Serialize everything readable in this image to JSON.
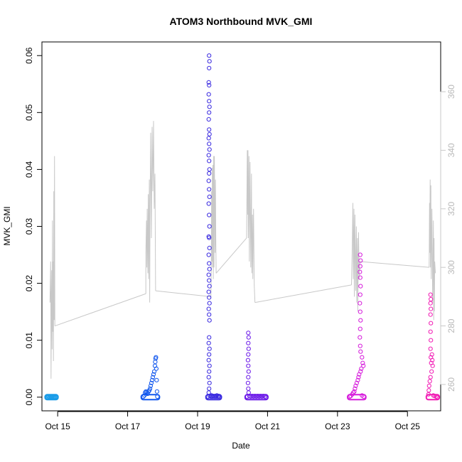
{
  "chart_data": {
    "type": "scatter",
    "title": "ATOM3 Northbound MVK_GMI",
    "xlabel": "Date",
    "ylabel": "MVK_GMI",
    "x_range_days": [
      14.55,
      25.95
    ],
    "ylim": [
      -0.0024,
      0.0624
    ],
    "x_ticks": [
      {
        "label": "Oct 15",
        "day": 15
      },
      {
        "label": "Oct 17",
        "day": 17
      },
      {
        "label": "Oct 19",
        "day": 19
      },
      {
        "label": "Oct 21",
        "day": 21
      },
      {
        "label": "Oct 23",
        "day": 23
      },
      {
        "label": "Oct 25",
        "day": 25
      }
    ],
    "y_ticks": [
      {
        "label": "0.00",
        "value": 0.0
      },
      {
        "label": "0.01",
        "value": 0.01
      },
      {
        "label": "0.02",
        "value": 0.02
      },
      {
        "label": "0.03",
        "value": 0.03
      },
      {
        "label": "0.04",
        "value": 0.04
      },
      {
        "label": "0.05",
        "value": 0.05
      },
      {
        "label": "0.06",
        "value": 0.06
      }
    ],
    "y2_range": [
      251,
      377
    ],
    "y2_ticks": [
      {
        "label": "260",
        "value": 260
      },
      {
        "label": "280",
        "value": 280
      },
      {
        "label": "300",
        "value": 300
      },
      {
        "label": "320",
        "value": 320
      },
      {
        "label": "340",
        "value": 340
      },
      {
        "label": "360",
        "value": 360
      }
    ],
    "y2_color": "#c8c8c8",
    "series": [
      {
        "color": "#1a9ce8",
        "x_range": [
          14.7,
          14.95
        ],
        "points": [
          [
            14.7,
            0.0
          ],
          [
            14.72,
            0.0
          ],
          [
            14.74,
            0.0001
          ],
          [
            14.76,
            0.0
          ],
          [
            14.78,
            0.0
          ],
          [
            14.8,
            0.0001
          ],
          [
            14.82,
            0.0
          ],
          [
            14.84,
            0.0
          ],
          [
            14.86,
            0.0001
          ],
          [
            14.88,
            0.0
          ],
          [
            14.9,
            0.0
          ],
          [
            14.92,
            0.0
          ],
          [
            14.94,
            0.0
          ]
        ]
      },
      {
        "color": "#1258ee",
        "x_range": [
          17.45,
          17.85
        ],
        "points": [
          [
            17.45,
            0.0001
          ],
          [
            17.48,
            0.0003
          ],
          [
            17.5,
            0.0008
          ],
          [
            17.52,
            0.001
          ],
          [
            17.55,
            0.0009
          ],
          [
            17.57,
            0.0006
          ],
          [
            17.6,
            0.001
          ],
          [
            17.62,
            0.0012
          ],
          [
            17.64,
            0.0015
          ],
          [
            17.66,
            0.002
          ],
          [
            17.68,
            0.0025
          ],
          [
            17.7,
            0.003
          ],
          [
            17.72,
            0.0035
          ],
          [
            17.74,
            0.004
          ],
          [
            17.76,
            0.0045
          ],
          [
            17.78,
            0.0055
          ],
          [
            17.79,
            0.0062
          ],
          [
            17.8,
            0.0068
          ],
          [
            17.81,
            0.007
          ],
          [
            17.82,
            0.005
          ],
          [
            17.83,
            0.003
          ],
          [
            17.84,
            0.001
          ],
          [
            17.85,
            0.0001
          ]
        ]
      },
      {
        "color": "#3a2ae0",
        "x_range": [
          19.3,
          19.62
        ],
        "points": [
          [
            19.33,
            0.06
          ],
          [
            19.34,
            0.059
          ],
          [
            19.33,
            0.0578
          ],
          [
            19.32,
            0.0553
          ],
          [
            19.33,
            0.0548
          ],
          [
            19.32,
            0.0532
          ],
          [
            19.33,
            0.052
          ],
          [
            19.34,
            0.051
          ],
          [
            19.33,
            0.05
          ],
          [
            19.32,
            0.0488
          ],
          [
            19.33,
            0.047
          ],
          [
            19.34,
            0.0462
          ],
          [
            19.32,
            0.0455
          ],
          [
            19.33,
            0.0445
          ],
          [
            19.34,
            0.0435
          ],
          [
            19.32,
            0.0425
          ],
          [
            19.33,
            0.0415
          ],
          [
            19.34,
            0.04
          ],
          [
            19.33,
            0.0393
          ],
          [
            19.32,
            0.038
          ],
          [
            19.33,
            0.0365
          ],
          [
            19.34,
            0.0352
          ],
          [
            19.32,
            0.034
          ],
          [
            19.33,
            0.032
          ],
          [
            19.34,
            0.03
          ],
          [
            19.32,
            0.0282
          ],
          [
            19.33,
            0.028
          ],
          [
            19.34,
            0.0262
          ],
          [
            19.32,
            0.025
          ],
          [
            19.33,
            0.0235
          ],
          [
            19.34,
            0.0225
          ],
          [
            19.32,
            0.0215
          ],
          [
            19.33,
            0.0205
          ],
          [
            19.34,
            0.0195
          ],
          [
            19.32,
            0.0185
          ],
          [
            19.33,
            0.0175
          ],
          [
            19.34,
            0.0165
          ],
          [
            19.32,
            0.0155
          ],
          [
            19.33,
            0.0145
          ],
          [
            19.34,
            0.0135
          ],
          [
            19.33,
            0.0105
          ],
          [
            19.32,
            0.0095
          ],
          [
            19.34,
            0.0085
          ],
          [
            19.33,
            0.0075
          ],
          [
            19.32,
            0.0065
          ],
          [
            19.34,
            0.0055
          ],
          [
            19.33,
            0.0045
          ],
          [
            19.32,
            0.0035
          ],
          [
            19.34,
            0.0025
          ],
          [
            19.33,
            0.0015
          ],
          [
            19.32,
            0.0008
          ],
          [
            19.3,
            0.0001
          ],
          [
            19.35,
            0.0002
          ],
          [
            19.38,
            0.0001
          ],
          [
            19.4,
            0.0003
          ],
          [
            19.42,
            0.0001
          ],
          [
            19.45,
            0.0002
          ],
          [
            19.48,
            0.0001
          ],
          [
            19.5,
            0.0002
          ],
          [
            19.53,
            0.0001
          ],
          [
            19.55,
            0.0003
          ],
          [
            19.58,
            0.0001
          ],
          [
            19.6,
            0.0002
          ],
          [
            19.62,
            0.0001
          ]
        ]
      },
      {
        "color": "#6c1ae8",
        "x_range": [
          20.42,
          20.95
        ],
        "points": [
          [
            20.45,
            0.0113
          ],
          [
            20.46,
            0.0105
          ],
          [
            20.45,
            0.0095
          ],
          [
            20.46,
            0.0085
          ],
          [
            20.45,
            0.0075
          ],
          [
            20.44,
            0.0065
          ],
          [
            20.45,
            0.0055
          ],
          [
            20.46,
            0.0045
          ],
          [
            20.45,
            0.0035
          ],
          [
            20.44,
            0.0025
          ],
          [
            20.45,
            0.0015
          ],
          [
            20.46,
            0.0008
          ],
          [
            20.42,
            0.0001
          ],
          [
            20.48,
            0.0002
          ],
          [
            20.52,
            0.0001
          ],
          [
            20.56,
            0.0002
          ],
          [
            20.6,
            0.0001
          ],
          [
            20.64,
            0.0002
          ],
          [
            20.68,
            0.0001
          ],
          [
            20.72,
            0.0002
          ],
          [
            20.76,
            0.0001
          ],
          [
            20.8,
            0.0002
          ],
          [
            20.84,
            0.0001
          ],
          [
            20.88,
            0.0002
          ],
          [
            20.92,
            0.0001
          ],
          [
            20.95,
            0.0
          ]
        ]
      },
      {
        "color": "#d61cdc",
        "x_range": [
          23.35,
          23.75
        ],
        "points": [
          [
            23.65,
            0.025
          ],
          [
            23.66,
            0.024
          ],
          [
            23.65,
            0.023
          ],
          [
            23.64,
            0.022
          ],
          [
            23.65,
            0.021
          ],
          [
            23.66,
            0.0195
          ],
          [
            23.65,
            0.018
          ],
          [
            23.64,
            0.0165
          ],
          [
            23.65,
            0.015
          ],
          [
            23.66,
            0.0135
          ],
          [
            23.65,
            0.012
          ],
          [
            23.64,
            0.0105
          ],
          [
            23.65,
            0.009
          ],
          [
            23.66,
            0.008
          ],
          [
            23.7,
            0.007
          ],
          [
            23.72,
            0.006
          ],
          [
            23.74,
            0.0055
          ],
          [
            23.68,
            0.005
          ],
          [
            23.66,
            0.0045
          ],
          [
            23.62,
            0.004
          ],
          [
            23.6,
            0.0035
          ],
          [
            23.58,
            0.003
          ],
          [
            23.55,
            0.0025
          ],
          [
            23.52,
            0.002
          ],
          [
            23.5,
            0.0015
          ],
          [
            23.48,
            0.001
          ],
          [
            23.45,
            0.0008
          ],
          [
            23.42,
            0.0005
          ],
          [
            23.38,
            0.0002
          ],
          [
            23.35,
            0.0001
          ],
          [
            23.7,
            0.0003
          ],
          [
            23.75,
            0.0001
          ]
        ]
      },
      {
        "color": "#f21ab4",
        "x_range": [
          25.6,
          25.85
        ],
        "points": [
          [
            25.66,
            0.018
          ],
          [
            25.67,
            0.0172
          ],
          [
            25.66,
            0.0165
          ],
          [
            25.67,
            0.0155
          ],
          [
            25.66,
            0.0145
          ],
          [
            25.67,
            0.013
          ],
          [
            25.66,
            0.0115
          ],
          [
            25.67,
            0.01
          ],
          [
            25.66,
            0.0085
          ],
          [
            25.67,
            0.007
          ],
          [
            25.68,
            0.006
          ],
          [
            25.7,
            0.0075
          ],
          [
            25.71,
            0.0065
          ],
          [
            25.72,
            0.0055
          ],
          [
            25.69,
            0.0045
          ],
          [
            25.66,
            0.0035
          ],
          [
            25.64,
            0.0028
          ],
          [
            25.62,
            0.002
          ],
          [
            25.61,
            0.0012
          ],
          [
            25.6,
            0.0005
          ],
          [
            25.74,
            0.0003
          ],
          [
            25.78,
            0.0002
          ],
          [
            25.82,
            0.0001
          ],
          [
            25.85,
            0.0
          ]
        ]
      }
    ],
    "secondary_line": {
      "color": "#c8c8c8",
      "points": [
        [
          14.78,
          288
        ],
        [
          14.8,
          302
        ],
        [
          14.81,
          262
        ],
        [
          14.82,
          288
        ],
        [
          14.83,
          299
        ],
        [
          14.84,
          272
        ],
        [
          14.85,
          316
        ],
        [
          14.86,
          278
        ],
        [
          14.87,
          302
        ],
        [
          14.88,
          268
        ],
        [
          14.89,
          326
        ],
        [
          14.9,
          282
        ],
        [
          14.91,
          338
        ],
        [
          14.92,
          280
        ],
        [
          17.52,
          291
        ],
        [
          17.52,
          305
        ],
        [
          17.54,
          316
        ],
        [
          17.55,
          300
        ],
        [
          17.56,
          320
        ],
        [
          17.58,
          298
        ],
        [
          17.59,
          325
        ],
        [
          17.6,
          296
        ],
        [
          17.62,
          330
        ],
        [
          17.63,
          288
        ],
        [
          17.64,
          320
        ],
        [
          17.66,
          346
        ],
        [
          17.68,
          310
        ],
        [
          17.7,
          348
        ],
        [
          17.72,
          326
        ],
        [
          17.74,
          350
        ],
        [
          17.76,
          320
        ],
        [
          17.78,
          332
        ],
        [
          17.8,
          292
        ],
        [
          19.38,
          290
        ],
        [
          19.39,
          298
        ],
        [
          19.4,
          326
        ],
        [
          19.41,
          302
        ],
        [
          19.42,
          334
        ],
        [
          19.43,
          300
        ],
        [
          19.44,
          335
        ],
        [
          19.45,
          296
        ],
        [
          19.46,
          338
        ],
        [
          19.47,
          300
        ],
        [
          19.48,
          338
        ],
        [
          19.5,
          305
        ],
        [
          19.51,
          330
        ],
        [
          19.52,
          310
        ],
        [
          19.53,
          298
        ],
        [
          20.4,
          310
        ],
        [
          20.42,
          340
        ],
        [
          20.43,
          318
        ],
        [
          20.44,
          340
        ],
        [
          20.45,
          310
        ],
        [
          20.47,
          338
        ],
        [
          20.48,
          302
        ],
        [
          20.5,
          336
        ],
        [
          20.52,
          300
        ],
        [
          20.54,
          332
        ],
        [
          20.55,
          298
        ],
        [
          20.57,
          318
        ],
        [
          20.58,
          296
        ],
        [
          20.6,
          320
        ],
        [
          20.62,
          294
        ],
        [
          20.64,
          288
        ],
        [
          23.4,
          294
        ],
        [
          23.42,
          306
        ],
        [
          23.44,
          322
        ],
        [
          23.45,
          296
        ],
        [
          23.47,
          320
        ],
        [
          23.48,
          290
        ],
        [
          23.5,
          318
        ],
        [
          23.52,
          292
        ],
        [
          23.54,
          314
        ],
        [
          23.55,
          288
        ],
        [
          23.57,
          310
        ],
        [
          23.58,
          285
        ],
        [
          23.6,
          312
        ],
        [
          23.62,
          296
        ],
        [
          23.64,
          302
        ],
        [
          25.62,
          300
        ],
        [
          25.63,
          322
        ],
        [
          25.64,
          305
        ],
        [
          25.65,
          330
        ],
        [
          25.66,
          300
        ],
        [
          25.67,
          328
        ],
        [
          25.68,
          296
        ],
        [
          25.7,
          320
        ],
        [
          25.72,
          288
        ],
        [
          25.74,
          316
        ],
        [
          25.75,
          282
        ],
        [
          25.76,
          310
        ],
        [
          25.77,
          285
        ],
        [
          25.78,
          302
        ],
        [
          25.8,
          298
        ]
      ],
      "connectors": [
        [
          [
            14.92,
            280
          ],
          [
            17.52,
            291
          ]
        ],
        [
          [
            17.8,
            292
          ],
          [
            19.38,
            290
          ]
        ],
        [
          [
            19.53,
            298
          ],
          [
            20.4,
            310
          ]
        ],
        [
          [
            20.64,
            288
          ],
          [
            23.4,
            294
          ]
        ],
        [
          [
            23.64,
            302
          ],
          [
            25.62,
            300
          ]
        ]
      ]
    }
  }
}
